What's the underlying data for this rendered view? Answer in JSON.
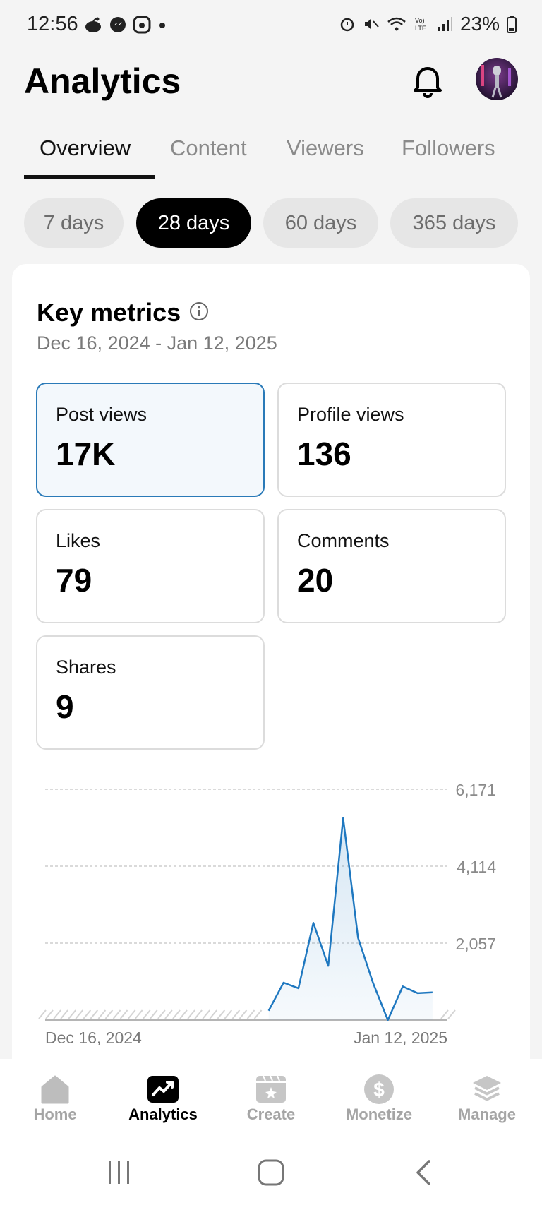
{
  "status_bar": {
    "time": "12:56",
    "battery": "23%",
    "left_icons": [
      "reddit-icon",
      "messenger-icon",
      "bluesky-icon",
      "dot-icon"
    ],
    "right_icons": [
      "alarm-icon",
      "mute-icon",
      "wifi-icon",
      "volte-icon",
      "signal-icon",
      "battery-icon"
    ]
  },
  "header": {
    "title": "Analytics"
  },
  "tabs": [
    {
      "label": "Overview",
      "active": true
    },
    {
      "label": "Content",
      "active": false
    },
    {
      "label": "Viewers",
      "active": false
    },
    {
      "label": "Followers",
      "active": false
    }
  ],
  "range_pills": [
    {
      "label": "7 days",
      "active": false
    },
    {
      "label": "28 days",
      "active": true
    },
    {
      "label": "60 days",
      "active": false
    },
    {
      "label": "365 days",
      "active": false
    }
  ],
  "key_metrics": {
    "title": "Key metrics",
    "date_range": "Dec 16, 2024 - Jan 12, 2025",
    "metrics": [
      {
        "label": "Post views",
        "value": "17K",
        "selected": true
      },
      {
        "label": "Profile views",
        "value": "136",
        "selected": false
      },
      {
        "label": "Likes",
        "value": "79",
        "selected": false
      },
      {
        "label": "Comments",
        "value": "20",
        "selected": false
      },
      {
        "label": "Shares",
        "value": "9",
        "selected": false
      }
    ]
  },
  "chart_data": {
    "type": "area",
    "title": "",
    "xlabel": "",
    "ylabel": "",
    "x_tick_labels": [
      "Dec 16, 2024",
      "Jan 12, 2025"
    ],
    "y_tick_labels": [
      "6,171",
      "4,114",
      "2,057"
    ],
    "ylim": [
      0,
      6171
    ],
    "grid": true,
    "color": "#1f78c0",
    "x": [
      "Dec 16, 2024",
      "Dec 17, 2024",
      "Dec 18, 2024",
      "Dec 19, 2024",
      "Dec 20, 2024",
      "Dec 21, 2024",
      "Dec 22, 2024",
      "Dec 23, 2024",
      "Dec 24, 2024",
      "Dec 25, 2024",
      "Dec 26, 2024",
      "Dec 27, 2024",
      "Dec 28, 2024",
      "Dec 29, 2024",
      "Dec 30, 2024",
      "Dec 31, 2024",
      "Jan 1, 2025",
      "Jan 2, 2025",
      "Jan 3, 2025",
      "Jan 4, 2025",
      "Jan 5, 2025",
      "Jan 6, 2025",
      "Jan 7, 2025",
      "Jan 8, 2025",
      "Jan 9, 2025",
      "Jan 10, 2025",
      "Jan 11, 2025",
      "Jan 12, 2025"
    ],
    "series": [
      {
        "values": [
          null,
          null,
          null,
          null,
          null,
          null,
          null,
          null,
          null,
          null,
          null,
          null,
          null,
          null,
          null,
          250,
          1000,
          850,
          2600,
          1450,
          5400,
          2200,
          1000,
          0,
          900,
          720,
          740,
          null
        ]
      }
    ]
  },
  "bottom_nav": [
    {
      "label": "Home",
      "icon": "home-icon",
      "active": false
    },
    {
      "label": "Analytics",
      "icon": "analytics-icon",
      "active": true
    },
    {
      "label": "Create",
      "icon": "create-icon",
      "active": false
    },
    {
      "label": "Monetize",
      "icon": "dollar-icon",
      "active": false
    },
    {
      "label": "Manage",
      "icon": "layers-icon",
      "active": false
    }
  ],
  "system_nav": [
    "recents-icon",
    "home-circle-icon",
    "back-icon"
  ]
}
